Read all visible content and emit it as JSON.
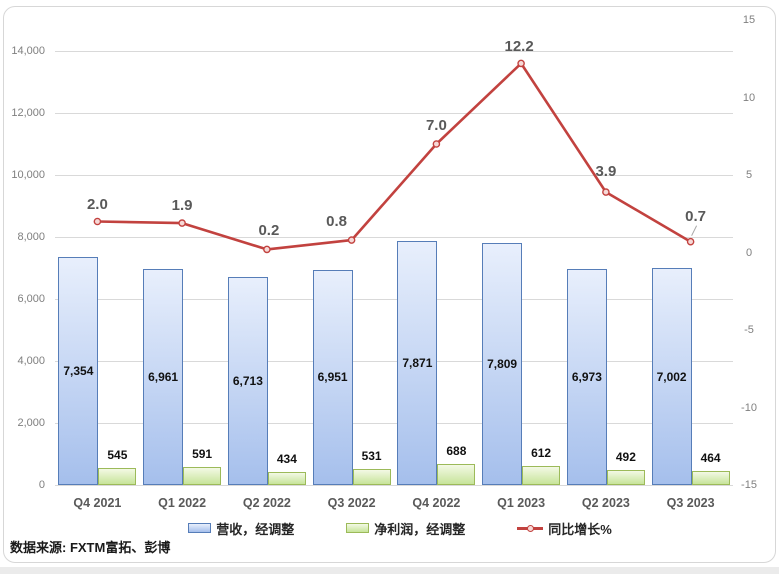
{
  "source_note": "数据来源: FXTM富拓、彭博",
  "chart_data": {
    "type": "combo-bar-line",
    "categories": [
      "Q4 2021",
      "Q1 2022",
      "Q2 2022",
      "Q3 2022",
      "Q4 2022",
      "Q1 2023",
      "Q2 2023",
      "Q3 2023"
    ],
    "series": [
      {
        "name": "营收，经调整",
        "type": "bar",
        "axis": "primary",
        "values": [
          7354,
          6961,
          6713,
          6951,
          7871,
          7809,
          6973,
          7002
        ],
        "labels": [
          "7,354",
          "6,961",
          "6,713",
          "6,951",
          "7,871",
          "7,809",
          "6,973",
          "7,002"
        ],
        "fill_top": "#e8effc",
        "fill_bottom": "#a5bfec",
        "border": "#567db8"
      },
      {
        "name": "净利润，经调整",
        "type": "bar",
        "axis": "primary",
        "values": [
          545,
          591,
          434,
          531,
          688,
          612,
          492,
          464
        ],
        "labels": [
          "545",
          "591",
          "434",
          "531",
          "688",
          "612",
          "492",
          "464"
        ],
        "fill_top": "#f3f9e5",
        "fill_bottom": "#c7e49a",
        "border": "#9cba59"
      },
      {
        "name": "同比增长%",
        "type": "line",
        "axis": "secondary",
        "values": [
          2.0,
          1.9,
          0.2,
          0.8,
          7.0,
          12.2,
          3.9,
          0.7
        ],
        "labels": [
          "2.0",
          "1.9",
          "0.2",
          "0.8",
          "7.0",
          "12.2",
          "3.9",
          "0.7"
        ],
        "color": "#c2423f",
        "marker_fill": "#f6d9d7",
        "label_dx": [
          0,
          0,
          2,
          -15,
          0,
          -2,
          0,
          5
        ],
        "label_dy": [
          -17,
          -17,
          -18,
          -18,
          -18,
          -16,
          -20,
          -25
        ],
        "leader_index": 7
      }
    ],
    "primary_axis": {
      "min": 0,
      "max": 15000,
      "ticks": [
        {
          "v": 0,
          "label": "0"
        },
        {
          "v": 2000,
          "label": "2,000"
        },
        {
          "v": 4000,
          "label": "4,000"
        },
        {
          "v": 6000,
          "label": "6,000"
        },
        {
          "v": 8000,
          "label": "8,000"
        },
        {
          "v": 10000,
          "label": "10,000"
        },
        {
          "v": 12000,
          "label": "12,000"
        },
        {
          "v": 14000,
          "label": "14,000"
        }
      ]
    },
    "secondary_axis": {
      "min": -15,
      "max": 15,
      "ticks": [
        {
          "v": 15,
          "label": "15"
        },
        {
          "v": 10,
          "label": "10"
        },
        {
          "v": 5,
          "label": "5"
        },
        {
          "v": 0,
          "label": "0"
        },
        {
          "v": -5,
          "label": "-5"
        },
        {
          "v": -10,
          "label": "-10"
        },
        {
          "v": -15,
          "label": "-15"
        }
      ]
    },
    "grid": true,
    "legend_position": "bottom",
    "gridline_color": "#d9d9d9"
  }
}
